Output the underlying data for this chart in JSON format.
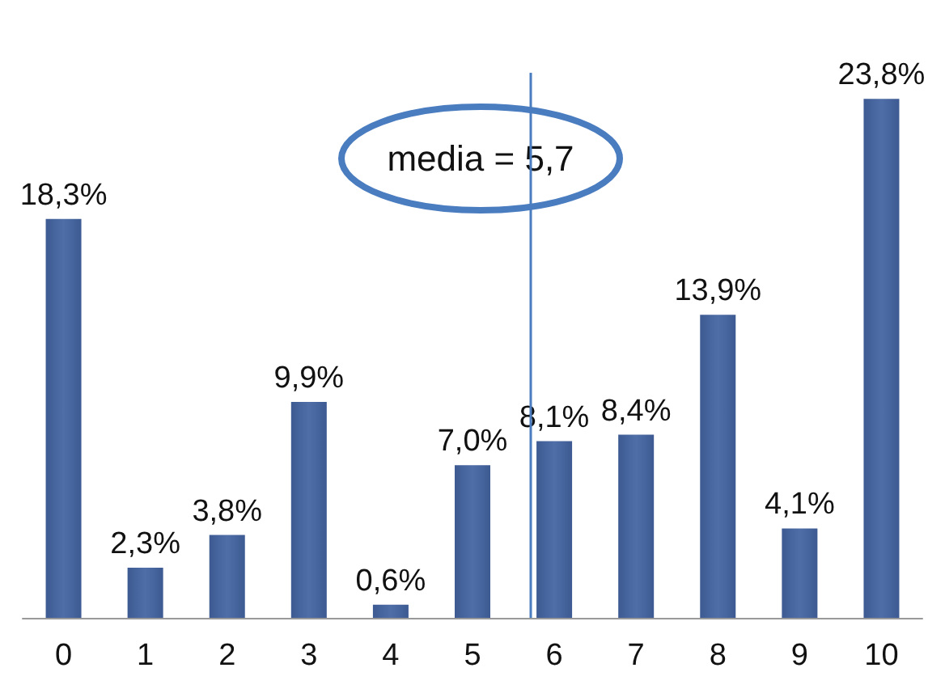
{
  "chart_data": {
    "type": "bar",
    "x": [
      0,
      1,
      2,
      3,
      4,
      5,
      6,
      7,
      8,
      9,
      10
    ],
    "values": [
      18.3,
      2.3,
      3.8,
      9.9,
      0.6,
      7.0,
      8.1,
      8.4,
      13.9,
      4.1,
      23.8
    ],
    "value_labels": [
      "18,3%",
      "2,3%",
      "3,8%",
      "9,9%",
      "0,6%",
      "7,0%",
      "8,1%",
      "8,4%",
      "13,9%",
      "4,1%",
      "23,8%"
    ],
    "color": "#4f6ea8",
    "xlim": [
      -0.5,
      10.5
    ],
    "xticks": [
      0,
      1,
      2,
      3,
      4,
      5,
      6,
      7,
      8,
      9,
      10
    ],
    "tick_labels": "x",
    "grid": false,
    "ref_lines": [
      {
        "axis": "x",
        "value": 5.7,
        "color": "#4a7cc0"
      }
    ],
    "annotations": [
      "media = 5,7"
    ]
  }
}
